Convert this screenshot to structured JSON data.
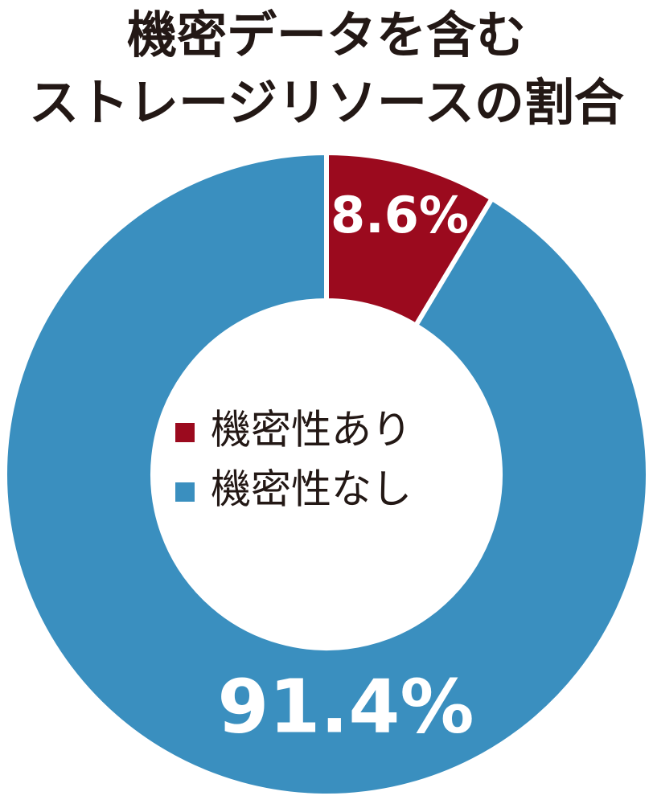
{
  "chart_data": {
    "type": "donut",
    "title": [
      "機密データを含む",
      "ストレージリソースの割合"
    ],
    "categories": [
      "機密性あり",
      "機密性なし"
    ],
    "values": [
      8.6,
      91.4
    ],
    "value_labels": [
      "8.6%",
      "91.4%"
    ],
    "colors": [
      "#9b0a1e",
      "#3a8fbf"
    ]
  }
}
